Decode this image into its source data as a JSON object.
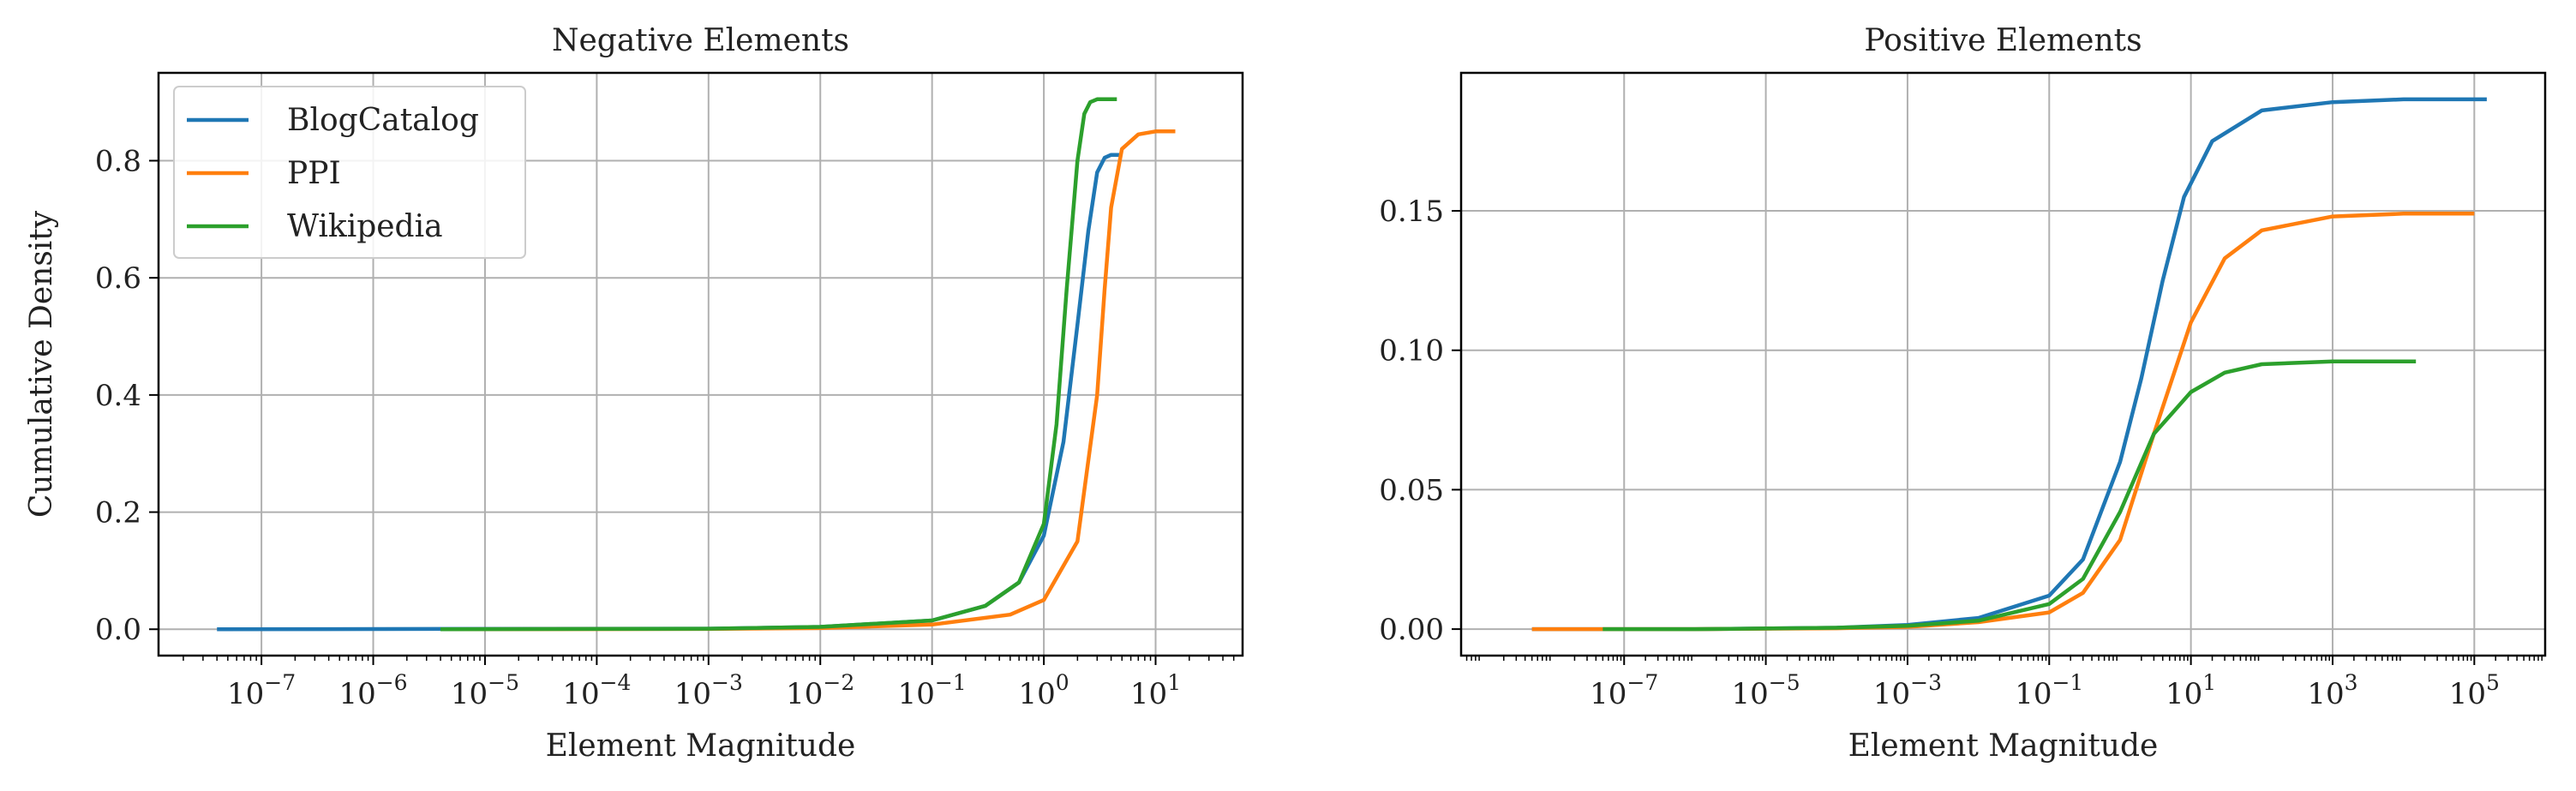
{
  "chart_data": [
    {
      "type": "line",
      "title": "Negative Elements",
      "xlabel": "Element Magnitude",
      "ylabel": "Cumulative Density",
      "xscale": "log",
      "xlim": [
        1.2e-08,
        60
      ],
      "ylim": [
        -0.045,
        0.95
      ],
      "xticks": [
        1e-07,
        1e-06,
        1e-05,
        0.0001,
        0.001,
        0.01,
        0.1,
        1,
        10
      ],
      "xtick_labels": [
        {
          "base": "10",
          "exp": "−7"
        },
        {
          "base": "10",
          "exp": "−6"
        },
        {
          "base": "10",
          "exp": "−5"
        },
        {
          "base": "10",
          "exp": "−4"
        },
        {
          "base": "10",
          "exp": "−3"
        },
        {
          "base": "10",
          "exp": "−2"
        },
        {
          "base": "10",
          "exp": "−1"
        },
        {
          "base": "10",
          "exp": "0"
        },
        {
          "base": "10",
          "exp": "1"
        }
      ],
      "yticks": [
        0.0,
        0.2,
        0.4,
        0.6,
        0.8
      ],
      "ytick_labels": [
        "0.0",
        "0.2",
        "0.4",
        "0.6",
        "0.8"
      ],
      "grid": true,
      "legend": {
        "position": "top-left",
        "entries": [
          "BlogCatalog",
          "PPI",
          "Wikipedia"
        ]
      },
      "series": [
        {
          "name": "BlogCatalog",
          "color": "#1f77b4",
          "x": [
            4e-08,
            0.001,
            0.01,
            0.1,
            0.3,
            0.6,
            1.0,
            1.5,
            2.0,
            2.5,
            3.0,
            3.5,
            4.0,
            5.0
          ],
          "y": [
            0.0,
            0.001,
            0.004,
            0.015,
            0.04,
            0.08,
            0.16,
            0.32,
            0.52,
            0.68,
            0.78,
            0.805,
            0.81,
            0.81
          ]
        },
        {
          "name": "PPI",
          "color": "#ff7f0e",
          "x": [
            4e-06,
            0.001,
            0.01,
            0.1,
            0.5,
            1.0,
            2.0,
            3.0,
            3.5,
            4.0,
            5.0,
            7.0,
            10.0,
            15.0
          ],
          "y": [
            0.0,
            0.0005,
            0.002,
            0.008,
            0.025,
            0.05,
            0.15,
            0.4,
            0.58,
            0.72,
            0.82,
            0.845,
            0.85,
            0.85
          ]
        },
        {
          "name": "Wikipedia",
          "color": "#2ca02c",
          "x": [
            4e-06,
            0.001,
            0.01,
            0.1,
            0.3,
            0.6,
            1.0,
            1.3,
            1.6,
            2.0,
            2.3,
            2.6,
            3.0,
            4.5
          ],
          "y": [
            0.0,
            0.001,
            0.004,
            0.015,
            0.04,
            0.08,
            0.18,
            0.35,
            0.58,
            0.8,
            0.88,
            0.9,
            0.905,
            0.905
          ]
        }
      ]
    },
    {
      "type": "line",
      "title": "Positive Elements",
      "xlabel": "Element Magnitude",
      "ylabel": "",
      "xscale": "log",
      "xlim": [
        5e-10,
        1000000.0
      ],
      "ylim": [
        -0.0095,
        0.1995
      ],
      "xticks": [
        1e-07,
        1e-05,
        0.001,
        0.1,
        10,
        1000.0,
        100000.0
      ],
      "xtick_labels": [
        {
          "base": "10",
          "exp": "−7"
        },
        {
          "base": "10",
          "exp": "−5"
        },
        {
          "base": "10",
          "exp": "−3"
        },
        {
          "base": "10",
          "exp": "−1"
        },
        {
          "base": "10",
          "exp": "1"
        },
        {
          "base": "10",
          "exp": "3"
        },
        {
          "base": "10",
          "exp": "5"
        }
      ],
      "yticks": [
        0.0,
        0.05,
        0.1,
        0.15
      ],
      "ytick_labels": [
        "0.00",
        "0.05",
        "0.10",
        "0.15"
      ],
      "grid": true,
      "series": [
        {
          "name": "BlogCatalog",
          "color": "#1f77b4",
          "x": [
            5e-09,
            1e-06,
            0.0001,
            0.001,
            0.01,
            0.1,
            0.3,
            1,
            2,
            4,
            8,
            20,
            100,
            1000,
            10000.0,
            150000.0
          ],
          "y": [
            0.0,
            0.0,
            0.0005,
            0.0015,
            0.004,
            0.012,
            0.025,
            0.06,
            0.09,
            0.125,
            0.155,
            0.175,
            0.186,
            0.189,
            0.19,
            0.19
          ]
        },
        {
          "name": "PPI",
          "color": "#ff7f0e",
          "x": [
            5e-09,
            1e-06,
            0.0001,
            0.001,
            0.01,
            0.1,
            0.3,
            1,
            3,
            10,
            30,
            100,
            1000,
            10000.0,
            100000.0
          ],
          "y": [
            0.0,
            0.0,
            0.0003,
            0.0008,
            0.0025,
            0.006,
            0.013,
            0.032,
            0.07,
            0.11,
            0.133,
            0.143,
            0.148,
            0.149,
            0.149
          ]
        },
        {
          "name": "Wikipedia",
          "color": "#2ca02c",
          "x": [
            5e-08,
            1e-06,
            0.0001,
            0.001,
            0.01,
            0.1,
            0.3,
            1,
            3,
            10,
            30,
            100,
            1000,
            15000.0
          ],
          "y": [
            0.0,
            0.0,
            0.0005,
            0.0012,
            0.003,
            0.009,
            0.018,
            0.042,
            0.07,
            0.085,
            0.092,
            0.095,
            0.096,
            0.096
          ]
        }
      ]
    }
  ]
}
